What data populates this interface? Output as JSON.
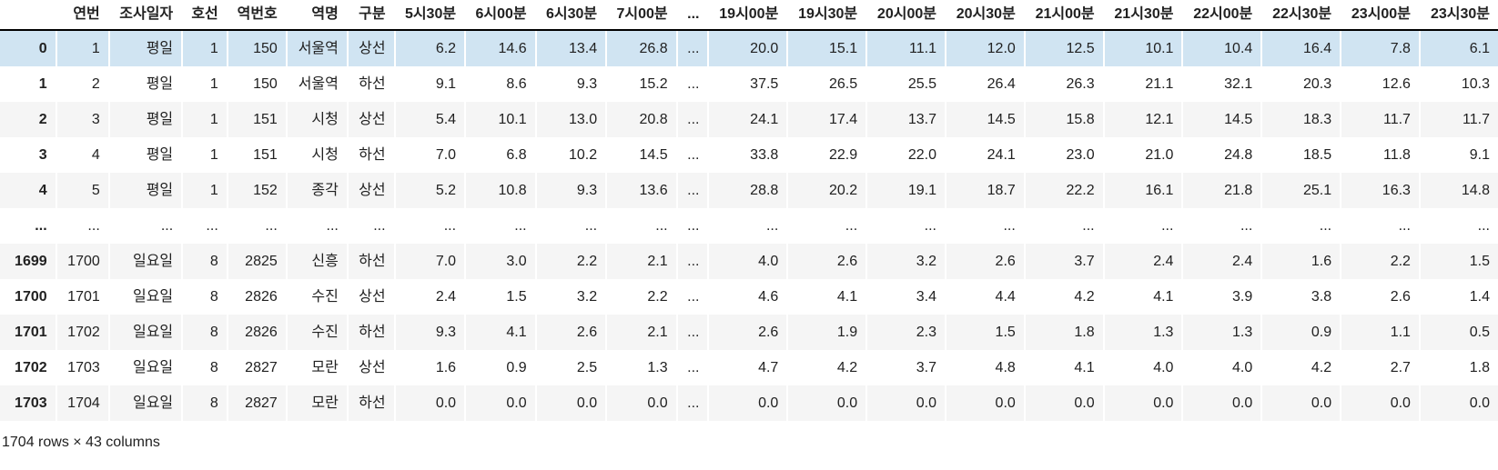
{
  "table": {
    "index_header": "",
    "columns": [
      "연번",
      "조사일자",
      "호선",
      "역번호",
      "역명",
      "구분",
      "5시30분",
      "6시00분",
      "6시30분",
      "7시00분",
      "...",
      "19시00분",
      "19시30분",
      "20시00분",
      "20시30분",
      "21시00분",
      "21시30분",
      "22시00분",
      "22시30분",
      "23시00분",
      "23시30분"
    ],
    "rows": [
      {
        "index": "0",
        "highlighted": true,
        "cells": [
          "1",
          "평일",
          "1",
          "150",
          "서울역",
          "상선",
          "6.2",
          "14.6",
          "13.4",
          "26.8",
          "...",
          "20.0",
          "15.1",
          "11.1",
          "12.0",
          "12.5",
          "10.1",
          "10.4",
          "16.4",
          "7.8",
          "6.1"
        ]
      },
      {
        "index": "1",
        "highlighted": false,
        "cells": [
          "2",
          "평일",
          "1",
          "150",
          "서울역",
          "하선",
          "9.1",
          "8.6",
          "9.3",
          "15.2",
          "...",
          "37.5",
          "26.5",
          "25.5",
          "26.4",
          "26.3",
          "21.1",
          "32.1",
          "20.3",
          "12.6",
          "10.3"
        ]
      },
      {
        "index": "2",
        "highlighted": false,
        "cells": [
          "3",
          "평일",
          "1",
          "151",
          "시청",
          "상선",
          "5.4",
          "10.1",
          "13.0",
          "20.8",
          "...",
          "24.1",
          "17.4",
          "13.7",
          "14.5",
          "15.8",
          "12.1",
          "14.5",
          "18.3",
          "11.7",
          "11.7"
        ]
      },
      {
        "index": "3",
        "highlighted": false,
        "cells": [
          "4",
          "평일",
          "1",
          "151",
          "시청",
          "하선",
          "7.0",
          "6.8",
          "10.2",
          "14.5",
          "...",
          "33.8",
          "22.9",
          "22.0",
          "24.1",
          "23.0",
          "21.0",
          "24.8",
          "18.5",
          "11.8",
          "9.1"
        ]
      },
      {
        "index": "4",
        "highlighted": false,
        "cells": [
          "5",
          "평일",
          "1",
          "152",
          "종각",
          "상선",
          "5.2",
          "10.8",
          "9.3",
          "13.6",
          "...",
          "28.8",
          "20.2",
          "19.1",
          "18.7",
          "22.2",
          "16.1",
          "21.8",
          "25.1",
          "16.3",
          "14.8"
        ]
      },
      {
        "index": "...",
        "highlighted": false,
        "cells": [
          "...",
          "...",
          "...",
          "...",
          "...",
          "...",
          "...",
          "...",
          "...",
          "...",
          "...",
          "...",
          "...",
          "...",
          "...",
          "...",
          "...",
          "...",
          "...",
          "...",
          "..."
        ]
      },
      {
        "index": "1699",
        "highlighted": false,
        "cells": [
          "1700",
          "일요일",
          "8",
          "2825",
          "신흥",
          "하선",
          "7.0",
          "3.0",
          "2.2",
          "2.1",
          "...",
          "4.0",
          "2.6",
          "3.2",
          "2.6",
          "3.7",
          "2.4",
          "2.4",
          "1.6",
          "2.2",
          "1.5"
        ]
      },
      {
        "index": "1700",
        "highlighted": false,
        "cells": [
          "1701",
          "일요일",
          "8",
          "2826",
          "수진",
          "상선",
          "2.4",
          "1.5",
          "3.2",
          "2.2",
          "...",
          "4.6",
          "4.1",
          "3.4",
          "4.4",
          "4.2",
          "4.1",
          "3.9",
          "3.8",
          "2.6",
          "1.4"
        ]
      },
      {
        "index": "1701",
        "highlighted": false,
        "cells": [
          "1702",
          "일요일",
          "8",
          "2826",
          "수진",
          "하선",
          "9.3",
          "4.1",
          "2.6",
          "2.1",
          "...",
          "2.6",
          "1.9",
          "2.3",
          "1.5",
          "1.8",
          "1.3",
          "1.3",
          "0.9",
          "1.1",
          "0.5"
        ]
      },
      {
        "index": "1702",
        "highlighted": false,
        "cells": [
          "1703",
          "일요일",
          "8",
          "2827",
          "모란",
          "상선",
          "1.6",
          "0.9",
          "2.5",
          "1.3",
          "...",
          "4.7",
          "4.2",
          "3.7",
          "4.8",
          "4.1",
          "4.0",
          "4.0",
          "4.2",
          "2.7",
          "1.8"
        ]
      },
      {
        "index": "1703",
        "highlighted": false,
        "cells": [
          "1704",
          "일요일",
          "8",
          "2827",
          "모란",
          "하선",
          "0.0",
          "0.0",
          "0.0",
          "0.0",
          "...",
          "0.0",
          "0.0",
          "0.0",
          "0.0",
          "0.0",
          "0.0",
          "0.0",
          "0.0",
          "0.0",
          "0.0"
        ]
      }
    ]
  },
  "footer": {
    "dimensions_label": "1704 rows × 43 columns"
  },
  "colors": {
    "stripe": "#f5f5f5",
    "highlight": "#d0e4f2",
    "header_border": "#000000",
    "text": "#212121"
  }
}
